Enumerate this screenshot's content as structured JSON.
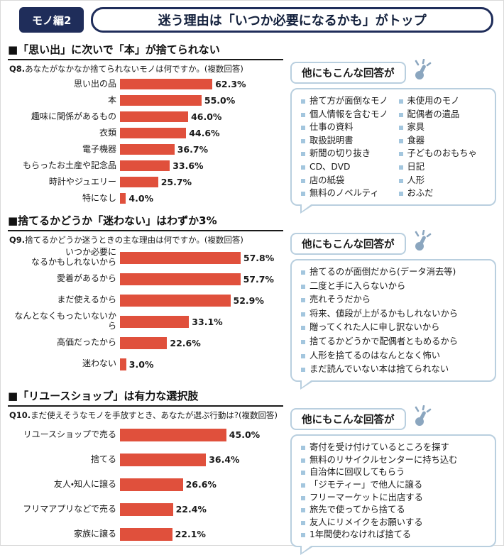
{
  "header": {
    "badge": "モノ編2",
    "title": "迷う理由は「いつか必要になるかも」がトップ"
  },
  "colors": {
    "bar": "#e0503c",
    "navy": "#1f2d5a",
    "bubble_border": "#b9cfdf",
    "bullet": "#a3c6de",
    "hand_icon": "#8ba6bf"
  },
  "chart_data": [
    {
      "type": "bar",
      "orientation": "horizontal",
      "section_heading": "■「思い出」に次いで「本」が捨てられない",
      "question_label": "Q8.",
      "question_text": "あなたがなかなか捨てられないモノは何ですか。(複数回答)",
      "categories": [
        "思い出の品",
        "本",
        "趣味に関係があるもの",
        "衣類",
        "電子機器",
        "もらったお土産や記念品",
        "時計やジュエリー",
        "特になし"
      ],
      "values": [
        62.3,
        55.0,
        46.0,
        44.6,
        36.7,
        33.6,
        25.7,
        4.0
      ],
      "unit": "%",
      "xlim": [
        0,
        70
      ],
      "grid": false,
      "legend": false
    },
    {
      "type": "bar",
      "orientation": "horizontal",
      "section_heading": "■捨てるかどうか「迷わない」はわずか3%",
      "question_label": "Q9.",
      "question_text": "捨てるかどうか迷うときの主な理由は何ですか。(複数回答)",
      "categories": [
        "いつか必要に\nなるかもしれないから",
        "愛着があるから",
        "まだ使えるから",
        "なんとなくもったいないから",
        "高価だったから",
        "迷わない"
      ],
      "values": [
        57.8,
        57.7,
        52.9,
        33.1,
        22.6,
        3.0
      ],
      "unit": "%",
      "xlim": [
        0,
        65
      ],
      "grid": false,
      "legend": false
    },
    {
      "type": "bar",
      "orientation": "horizontal",
      "section_heading": "■「リユースショップ」は有力な選択肢",
      "question_label": "Q10.",
      "question_text": "まだ使えそうなモノを手放すとき、あなたが選ぶ行動は?(複数回答)",
      "categories": [
        "リユースショップで売る",
        "捨てる",
        "友人・知人に譲る",
        "フリマアプリなどで売る",
        "家族に譲る"
      ],
      "values": [
        45.0,
        36.4,
        26.6,
        22.4,
        22.1
      ],
      "unit": "%",
      "xlim": [
        0,
        50
      ],
      "grid": false,
      "legend": false
    }
  ],
  "bubbles": [
    {
      "title": "他にもこんな回答が",
      "columns": [
        [
          "捨て方が面倒なモノ",
          "個人情報を含むモノ",
          "仕事の資料",
          "取扱説明書",
          "新聞の切り抜き",
          "CD、DVD",
          "店の紙袋",
          "無料のノベルティ"
        ],
        [
          "未使用のモノ",
          "配偶者の遺品",
          "家具",
          "食器",
          "子どものおもちゃ",
          "日記",
          "人形",
          "おふだ"
        ]
      ]
    },
    {
      "title": "他にもこんな回答が",
      "columns": [
        [
          "捨てるのが面倒だから(データ消去等)",
          "二度と手に入らないから",
          "売れそうだから",
          "将来、値段が上がるかもしれないから",
          "贈ってくれた人に申し訳ないから",
          "捨てるかどうかで配偶者ともめるから",
          "人形を捨てるのはなんとなく怖い",
          "まだ読んでいない本は捨てられない"
        ]
      ]
    },
    {
      "title": "他にもこんな回答が",
      "columns": [
        [
          "寄付を受け付けているところを探す",
          "無料のリサイクルセンターに持ち込む",
          "自治体に回収してもらう",
          "「ジモティー」で他人に譲る",
          "フリーマーケットに出店する",
          "旅先で使ってから捨てる",
          "友人にリメイクをお願いする",
          "1年間使わなければ捨てる"
        ]
      ]
    }
  ]
}
